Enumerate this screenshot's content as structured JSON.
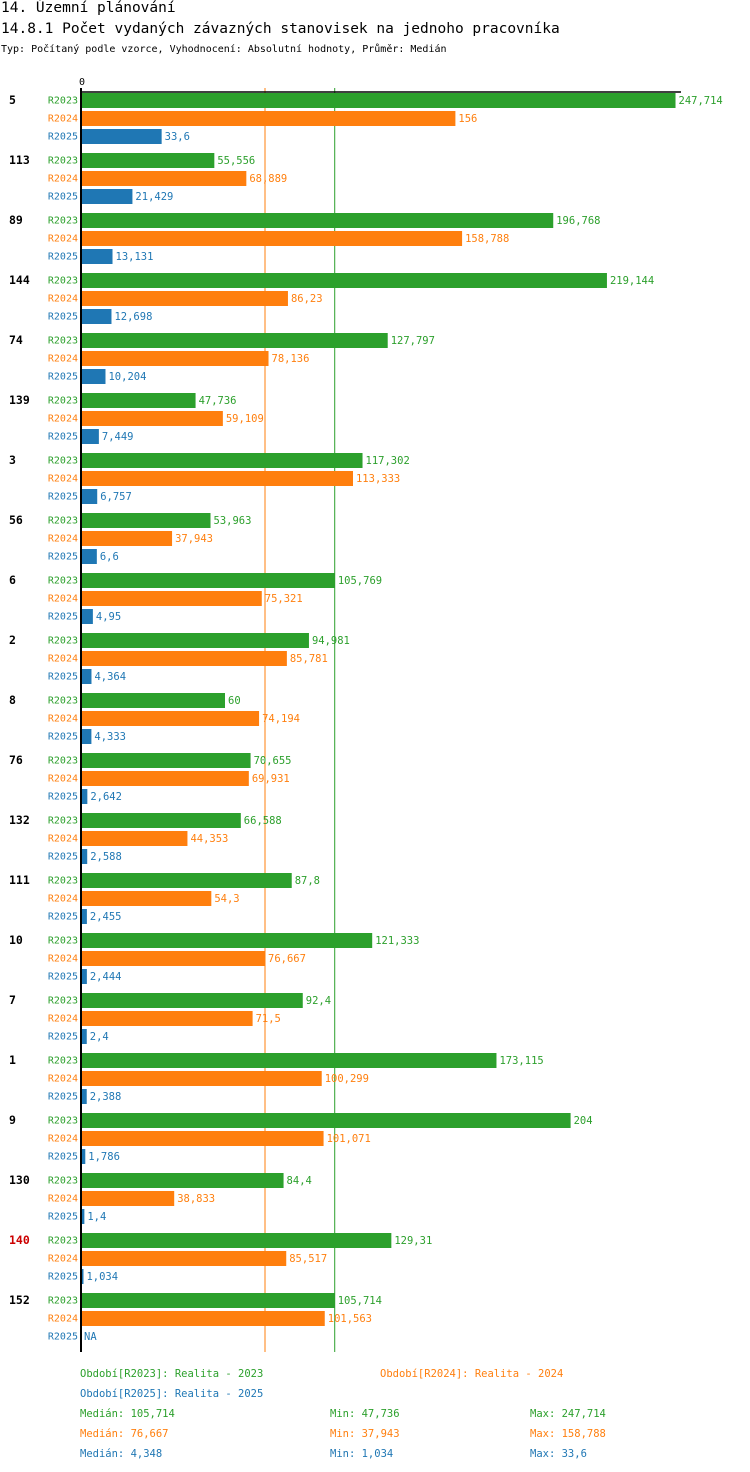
{
  "header": {
    "section": "14. Územní plánování",
    "title": "14.8.1 Počet vydaných závazných stanovisek na jednoho pracovníka",
    "subtitle": "Typ: Počítaný podle vzorce, Vyhodnocení: Absolutní hodnoty, Průměr: Medián"
  },
  "colors": {
    "R2023": "#2ca02c",
    "R2024": "#ff7f0e",
    "R2025": "#1f77b4",
    "highlight": "#cc0000",
    "axis": "#000000"
  },
  "chart_data": {
    "type": "bar",
    "orientation": "horizontal",
    "axis_zero_label": "0",
    "xlim": [
      0,
      250
    ],
    "highlight_category": "140",
    "reference_lines": [
      {
        "series": "R2024",
        "value": 76.667
      },
      {
        "series": "R2023",
        "value": 105.714
      }
    ],
    "series_names": [
      "R2023",
      "R2024",
      "R2025"
    ],
    "categories": [
      "5",
      "113",
      "89",
      "144",
      "74",
      "139",
      "3",
      "56",
      "6",
      "2",
      "8",
      "76",
      "132",
      "111",
      "10",
      "7",
      "1",
      "9",
      "130",
      "140",
      "152"
    ],
    "series": [
      {
        "name": "R2023",
        "values": [
          247.714,
          55.556,
          196.768,
          219.144,
          127.797,
          47.736,
          117.302,
          53.963,
          105.769,
          94.981,
          60,
          70.655,
          66.588,
          87.8,
          121.333,
          92.4,
          173.115,
          204,
          84.4,
          129.31,
          105.714
        ],
        "labels": [
          "247,714",
          "55,556",
          "196,768",
          "219,144",
          "127,797",
          "47,736",
          "117,302",
          "53,963",
          "105,769",
          "94,981",
          "60",
          "70,655",
          "66,588",
          "87,8",
          "121,333",
          "92,4",
          "173,115",
          "204",
          "84,4",
          "129,31",
          "105,714"
        ]
      },
      {
        "name": "R2024",
        "values": [
          156,
          68.889,
          158.788,
          86.23,
          78.136,
          59.109,
          113.333,
          37.943,
          75.321,
          85.781,
          74.194,
          69.931,
          44.353,
          54.3,
          76.667,
          71.5,
          100.299,
          101.071,
          38.833,
          85.517,
          101.563
        ],
        "labels": [
          "156",
          "68,889",
          "158,788",
          "86,23",
          "78,136",
          "59,109",
          "113,333",
          "37,943",
          "75,321",
          "85,781",
          "74,194",
          "69,931",
          "44,353",
          "54,3",
          "76,667",
          "71,5",
          "100,299",
          "101,071",
          "38,833",
          "85,517",
          "101,563"
        ]
      },
      {
        "name": "R2025",
        "values": [
          33.6,
          21.429,
          13.131,
          12.698,
          10.204,
          7.449,
          6.757,
          6.6,
          4.95,
          4.364,
          4.333,
          2.642,
          2.588,
          2.455,
          2.444,
          2.4,
          2.388,
          1.786,
          1.4,
          1.034,
          null
        ],
        "labels": [
          "33,6",
          "21,429",
          "13,131",
          "12,698",
          "10,204",
          "7,449",
          "6,757",
          "6,6",
          "4,95",
          "4,364",
          "4,333",
          "2,642",
          "2,588",
          "2,455",
          "2,444",
          "2,4",
          "2,388",
          "1,786",
          "1,4",
          "1,034",
          "NA"
        ]
      }
    ]
  },
  "legend": {
    "r2023": "Období[R2023]: Realita - 2023",
    "r2024": "Období[R2024]: Realita - 2024",
    "r2025": "Období[R2025]: Realita - 2025"
  },
  "stats": {
    "r2023": {
      "median": "Medián: 105,714",
      "min": "Min: 47,736",
      "max": "Max: 247,714"
    },
    "r2024": {
      "median": "Medián: 76,667",
      "min": "Min: 37,943",
      "max": "Max: 158,788"
    },
    "r2025": {
      "median": "Medián: 4,348",
      "min": "Min: 1,034",
      "max": "Max: 33,6"
    }
  }
}
